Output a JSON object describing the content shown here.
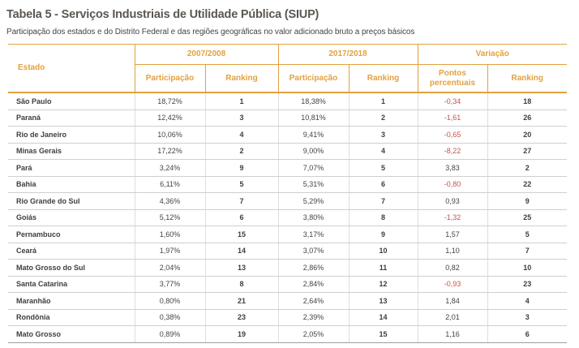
{
  "title": "Tabela 5 - Serviços Industriais de Utilidade Pública (SIUP)",
  "subtitle": "Participação dos estados e do Distrito Federal e das regiões geográficas no valor adicionado bruto a preços básicos",
  "colors": {
    "accent_orange": "#E2A13E",
    "negative_red": "#C8524A",
    "title_gray": "#5C5752",
    "body_text": "#454442",
    "divider_gray": "#CFCFCF"
  },
  "table": {
    "estado_header": "Estado",
    "groups": [
      {
        "label": "2007/2008"
      },
      {
        "label": "2017/2018"
      },
      {
        "label": "Variação"
      }
    ],
    "subheaders": [
      "Participação",
      "Ranking",
      "Participação",
      "Ranking",
      "Pontos percentuais",
      "Ranking"
    ],
    "rows": [
      {
        "estado": "São Paulo",
        "part_2007": "18,72%",
        "rank_2007": "1",
        "part_2017": "18,38%",
        "rank_2017": "1",
        "pontos": "-0,34",
        "rank_var": "18"
      },
      {
        "estado": "Paraná",
        "part_2007": "12,42%",
        "rank_2007": "3",
        "part_2017": "10,81%",
        "rank_2017": "2",
        "pontos": "-1,61",
        "rank_var": "26"
      },
      {
        "estado": "Rio de Janeiro",
        "part_2007": "10,06%",
        "rank_2007": "4",
        "part_2017": "9,41%",
        "rank_2017": "3",
        "pontos": "-0,65",
        "rank_var": "20"
      },
      {
        "estado": "Minas Gerais",
        "part_2007": "17,22%",
        "rank_2007": "2",
        "part_2017": "9,00%",
        "rank_2017": "4",
        "pontos": "-8,22",
        "rank_var": "27"
      },
      {
        "estado": "Pará",
        "part_2007": "3,24%",
        "rank_2007": "9",
        "part_2017": "7,07%",
        "rank_2017": "5",
        "pontos": "3,83",
        "rank_var": "2"
      },
      {
        "estado": "Bahia",
        "part_2007": "6,11%",
        "rank_2007": "5",
        "part_2017": "5,31%",
        "rank_2017": "6",
        "pontos": "-0,80",
        "rank_var": "22"
      },
      {
        "estado": "Rio Grande do Sul",
        "part_2007": "4,36%",
        "rank_2007": "7",
        "part_2017": "5,29%",
        "rank_2017": "7",
        "pontos": "0,93",
        "rank_var": "9"
      },
      {
        "estado": "Goiás",
        "part_2007": "5,12%",
        "rank_2007": "6",
        "part_2017": "3,80%",
        "rank_2017": "8",
        "pontos": "-1,32",
        "rank_var": "25"
      },
      {
        "estado": "Pernambuco",
        "part_2007": "1,60%",
        "rank_2007": "15",
        "part_2017": "3,17%",
        "rank_2017": "9",
        "pontos": "1,57",
        "rank_var": "5"
      },
      {
        "estado": "Ceará",
        "part_2007": "1,97%",
        "rank_2007": "14",
        "part_2017": "3,07%",
        "rank_2017": "10",
        "pontos": "1,10",
        "rank_var": "7"
      },
      {
        "estado": "Mato Grosso do Sul",
        "part_2007": "2,04%",
        "rank_2007": "13",
        "part_2017": "2,86%",
        "rank_2017": "11",
        "pontos": "0,82",
        "rank_var": "10"
      },
      {
        "estado": "Santa Catarina",
        "part_2007": "3,77%",
        "rank_2007": "8",
        "part_2017": "2,84%",
        "rank_2017": "12",
        "pontos": "-0,93",
        "rank_var": "23"
      },
      {
        "estado": "Maranhão",
        "part_2007": "0,80%",
        "rank_2007": "21",
        "part_2017": "2,64%",
        "rank_2017": "13",
        "pontos": "1,84",
        "rank_var": "4"
      },
      {
        "estado": "Rondônia",
        "part_2007": "0,38%",
        "rank_2007": "23",
        "part_2017": "2,39%",
        "rank_2017": "14",
        "pontos": "2,01",
        "rank_var": "3"
      },
      {
        "estado": "Mato Grosso",
        "part_2007": "0,89%",
        "rank_2007": "19",
        "part_2017": "2,05%",
        "rank_2017": "15",
        "pontos": "1,16",
        "rank_var": "6"
      }
    ]
  }
}
